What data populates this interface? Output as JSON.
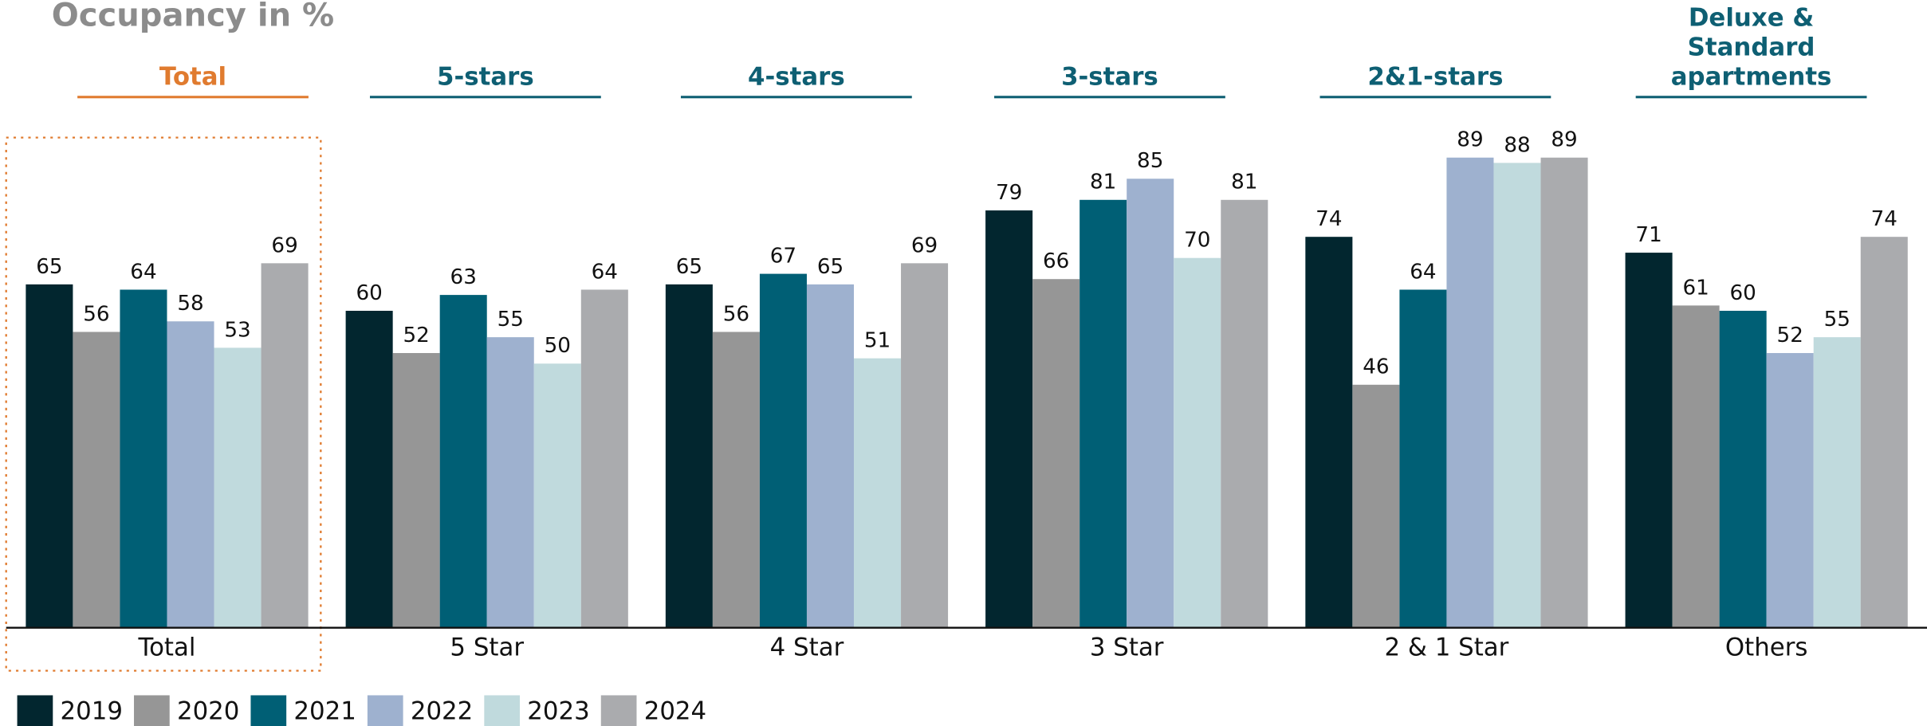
{
  "chart_data": {
    "type": "bar",
    "title": "Occupancy in %",
    "group_headers": [
      {
        "label": "Total",
        "color": "#e07b2f"
      },
      {
        "label": "5-stars",
        "color": "#0e5f73"
      },
      {
        "label": "4-stars",
        "color": "#0e5f73"
      },
      {
        "label": "3-stars",
        "color": "#0e5f73"
      },
      {
        "label": "2&1-stars",
        "color": "#0e5f73"
      },
      {
        "label": "Deluxe &\nStandard\napartments",
        "color": "#0e5f73"
      }
    ],
    "categories": [
      "Total",
      "5 Star",
      "4 Star",
      "3 Star",
      "2 & 1 Star",
      "Others"
    ],
    "series": [
      {
        "name": "2019",
        "color": "#02262f",
        "values": [
          65,
          60,
          65,
          79,
          74,
          71
        ]
      },
      {
        "name": "2020",
        "color": "#969696",
        "values": [
          56,
          52,
          56,
          66,
          46,
          61
        ]
      },
      {
        "name": "2021",
        "color": "#005f75",
        "values": [
          64,
          63,
          67,
          81,
          64,
          60
        ]
      },
      {
        "name": "2022",
        "color": "#9eb1cf",
        "values": [
          58,
          55,
          65,
          85,
          89,
          52
        ]
      },
      {
        "name": "2023",
        "color": "#c0dadd",
        "values": [
          53,
          50,
          51,
          70,
          88,
          55
        ]
      },
      {
        "name": "2024",
        "color": "#aaabae",
        "values": [
          69,
          64,
          69,
          81,
          89,
          74
        ]
      }
    ],
    "highlight_color": "#e07b2f"
  }
}
